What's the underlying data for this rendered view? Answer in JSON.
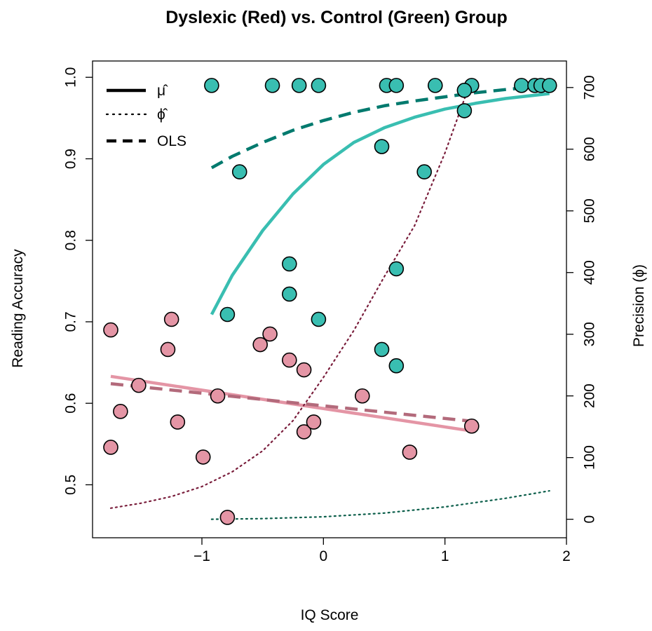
{
  "chart_data": {
    "type": "scatter",
    "title": "Dyslexic (Red) vs. Control (Green) Group",
    "xlabel": "IQ Score",
    "ylabel": "Reading Accuracy",
    "ylabel_right": "Precision (ϕ)",
    "xlim": [
      -1.9,
      2.0
    ],
    "ylim": [
      0.435,
      1.02
    ],
    "ylim_right": [
      -30,
      743
    ],
    "x_ticks": [
      -1,
      0,
      1,
      2
    ],
    "x_tick_labels": [
      "−1",
      "0",
      "1",
      "2"
    ],
    "y_ticks": [
      0.5,
      0.6,
      0.7,
      0.8,
      0.9,
      1.0
    ],
    "y_tick_labels": [
      "0.5",
      "0.6",
      "0.7",
      "0.8",
      "0.9",
      "1.0"
    ],
    "y_right_ticks": [
      0,
      100,
      200,
      300,
      400,
      500,
      600,
      700
    ],
    "y_right_tick_labels": [
      "0",
      "100",
      "200",
      "300",
      "400",
      "500",
      "600",
      "700"
    ],
    "grid": false,
    "legend_position": "top-left",
    "legend": [
      {
        "label": "μ̂",
        "style": "solid"
      },
      {
        "label": "ϕ̂",
        "style": "dotted"
      },
      {
        "label": "OLS",
        "style": "dashed"
      }
    ],
    "series": [
      {
        "group": "dyslexic",
        "kind": "points",
        "color": "#E495A5",
        "points": [
          [
            -1.75,
            0.69
          ],
          [
            -1.75,
            0.546
          ],
          [
            -1.67,
            0.59
          ],
          [
            -1.52,
            0.622
          ],
          [
            -1.28,
            0.666
          ],
          [
            -1.25,
            0.703
          ],
          [
            -1.2,
            0.577
          ],
          [
            -0.99,
            0.534
          ],
          [
            -0.87,
            0.609
          ],
          [
            -0.79,
            0.46
          ],
          [
            -0.52,
            0.672
          ],
          [
            -0.44,
            0.685
          ],
          [
            -0.28,
            0.653
          ],
          [
            -0.16,
            0.641
          ],
          [
            -0.16,
            0.565
          ],
          [
            -0.08,
            0.577
          ],
          [
            0.32,
            0.609
          ],
          [
            0.71,
            0.54
          ],
          [
            1.22,
            0.572
          ]
        ]
      },
      {
        "group": "control",
        "kind": "points",
        "color": "#39BEB1",
        "points": [
          [
            -0.92,
            0.99
          ],
          [
            -0.42,
            0.99
          ],
          [
            -0.2,
            0.99
          ],
          [
            -0.04,
            0.99
          ],
          [
            0.52,
            0.99
          ],
          [
            0.6,
            0.99
          ],
          [
            0.92,
            0.99
          ],
          [
            1.22,
            0.99
          ],
          [
            1.63,
            0.99
          ],
          [
            1.74,
            0.99
          ],
          [
            1.79,
            0.99
          ],
          [
            1.86,
            0.99
          ],
          [
            1.16,
            0.984
          ],
          [
            1.16,
            0.959
          ],
          [
            0.48,
            0.915
          ],
          [
            0.83,
            0.884
          ],
          [
            -0.69,
            0.884
          ],
          [
            -0.28,
            0.771
          ],
          [
            0.6,
            0.765
          ],
          [
            -0.28,
            0.734
          ],
          [
            -0.79,
            0.709
          ],
          [
            -0.04,
            0.703
          ],
          [
            0.48,
            0.666
          ],
          [
            0.6,
            0.646
          ]
        ]
      },
      {
        "group": "dyslexic",
        "kind": "mu_hat_line",
        "style": "solid",
        "color": "#E495A5",
        "x": [
          -1.75,
          1.22
        ],
        "y": [
          0.633,
          0.566
        ]
      },
      {
        "group": "dyslexic",
        "kind": "ols_line",
        "style": "dashed",
        "color": "#B36A7B",
        "x": [
          -1.75,
          1.22
        ],
        "y": [
          0.624,
          0.578
        ]
      },
      {
        "group": "dyslexic",
        "kind": "phi_hat_curve",
        "style": "dotted",
        "color": "#7A1E3C",
        "axis": "right",
        "x": [
          -1.75,
          -1.5,
          -1.25,
          -1.0,
          -0.75,
          -0.5,
          -0.25,
          0.0,
          0.25,
          0.5,
          0.75,
          1.0,
          1.2
        ],
        "y": [
          18,
          26,
          37,
          53,
          77,
          111,
          160,
          230,
          306,
          393,
          476,
          594,
          703
        ]
      },
      {
        "group": "control",
        "kind": "mu_hat_curve",
        "style": "solid",
        "color": "#39BEB1",
        "x": [
          -0.92,
          -0.75,
          -0.5,
          -0.25,
          0.0,
          0.25,
          0.5,
          0.75,
          1.0,
          1.25,
          1.5,
          1.86
        ],
        "y": [
          0.709,
          0.757,
          0.812,
          0.857,
          0.893,
          0.92,
          0.938,
          0.951,
          0.961,
          0.968,
          0.974,
          0.98
        ]
      },
      {
        "group": "control",
        "kind": "ols_curve",
        "style": "dashed",
        "color": "#007A6E",
        "x": [
          -0.92,
          -0.75,
          -0.5,
          -0.25,
          0.0,
          0.25,
          0.5,
          0.75,
          1.0,
          1.25,
          1.5,
          1.86
        ],
        "y": [
          0.889,
          0.903,
          0.92,
          0.935,
          0.947,
          0.957,
          0.965,
          0.971,
          0.976,
          0.981,
          0.985,
          0.99
        ]
      },
      {
        "group": "control",
        "kind": "phi_hat_curve",
        "style": "dotted",
        "color": "#0B5E4A",
        "axis": "right",
        "x": [
          -0.92,
          -0.5,
          0.0,
          0.5,
          1.0,
          1.5,
          1.86
        ],
        "y": [
          0,
          1,
          4,
          10,
          20,
          34,
          46
        ]
      }
    ]
  }
}
